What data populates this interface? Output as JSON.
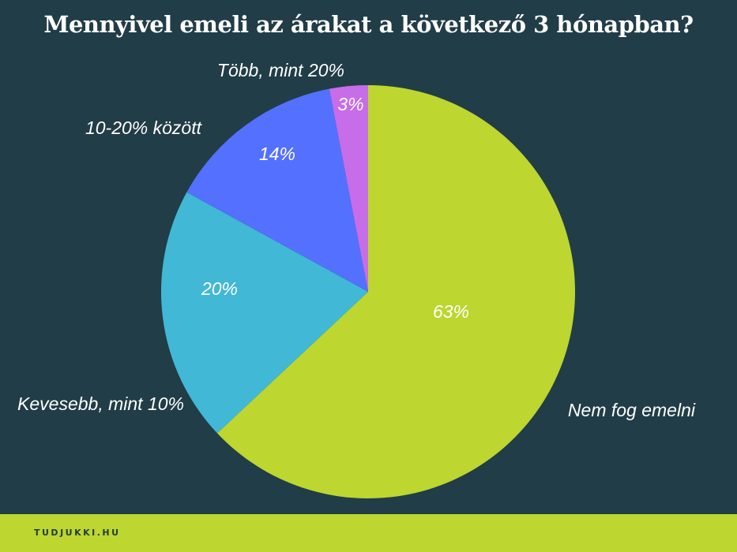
{
  "title": "Mennyivel emeli az árakat a következő 3 hónapban?",
  "footer": {
    "brand": "TUDJUKKI.HU",
    "color": "#bdd630"
  },
  "colors": {
    "background": "#213d47"
  },
  "chart_data": {
    "type": "pie",
    "title": "Mennyivel emeli az árakat a következő 3 hónapban?",
    "start": "12 o'clock",
    "direction": "clockwise",
    "slices": [
      {
        "label": "Nem fog emelni",
        "value": 63,
        "value_label": "63%",
        "color": "#bdd630"
      },
      {
        "label": "Kevesebb, mint 10%",
        "value": 20,
        "value_label": "20%",
        "color": "#41b8d6"
      },
      {
        "label": "10-20% között",
        "value": 14,
        "value_label": "14%",
        "color": "#5470fe"
      },
      {
        "label": "Több, mint 20%",
        "value": 3,
        "value_label": "3%",
        "color": "#c76de8"
      }
    ]
  }
}
